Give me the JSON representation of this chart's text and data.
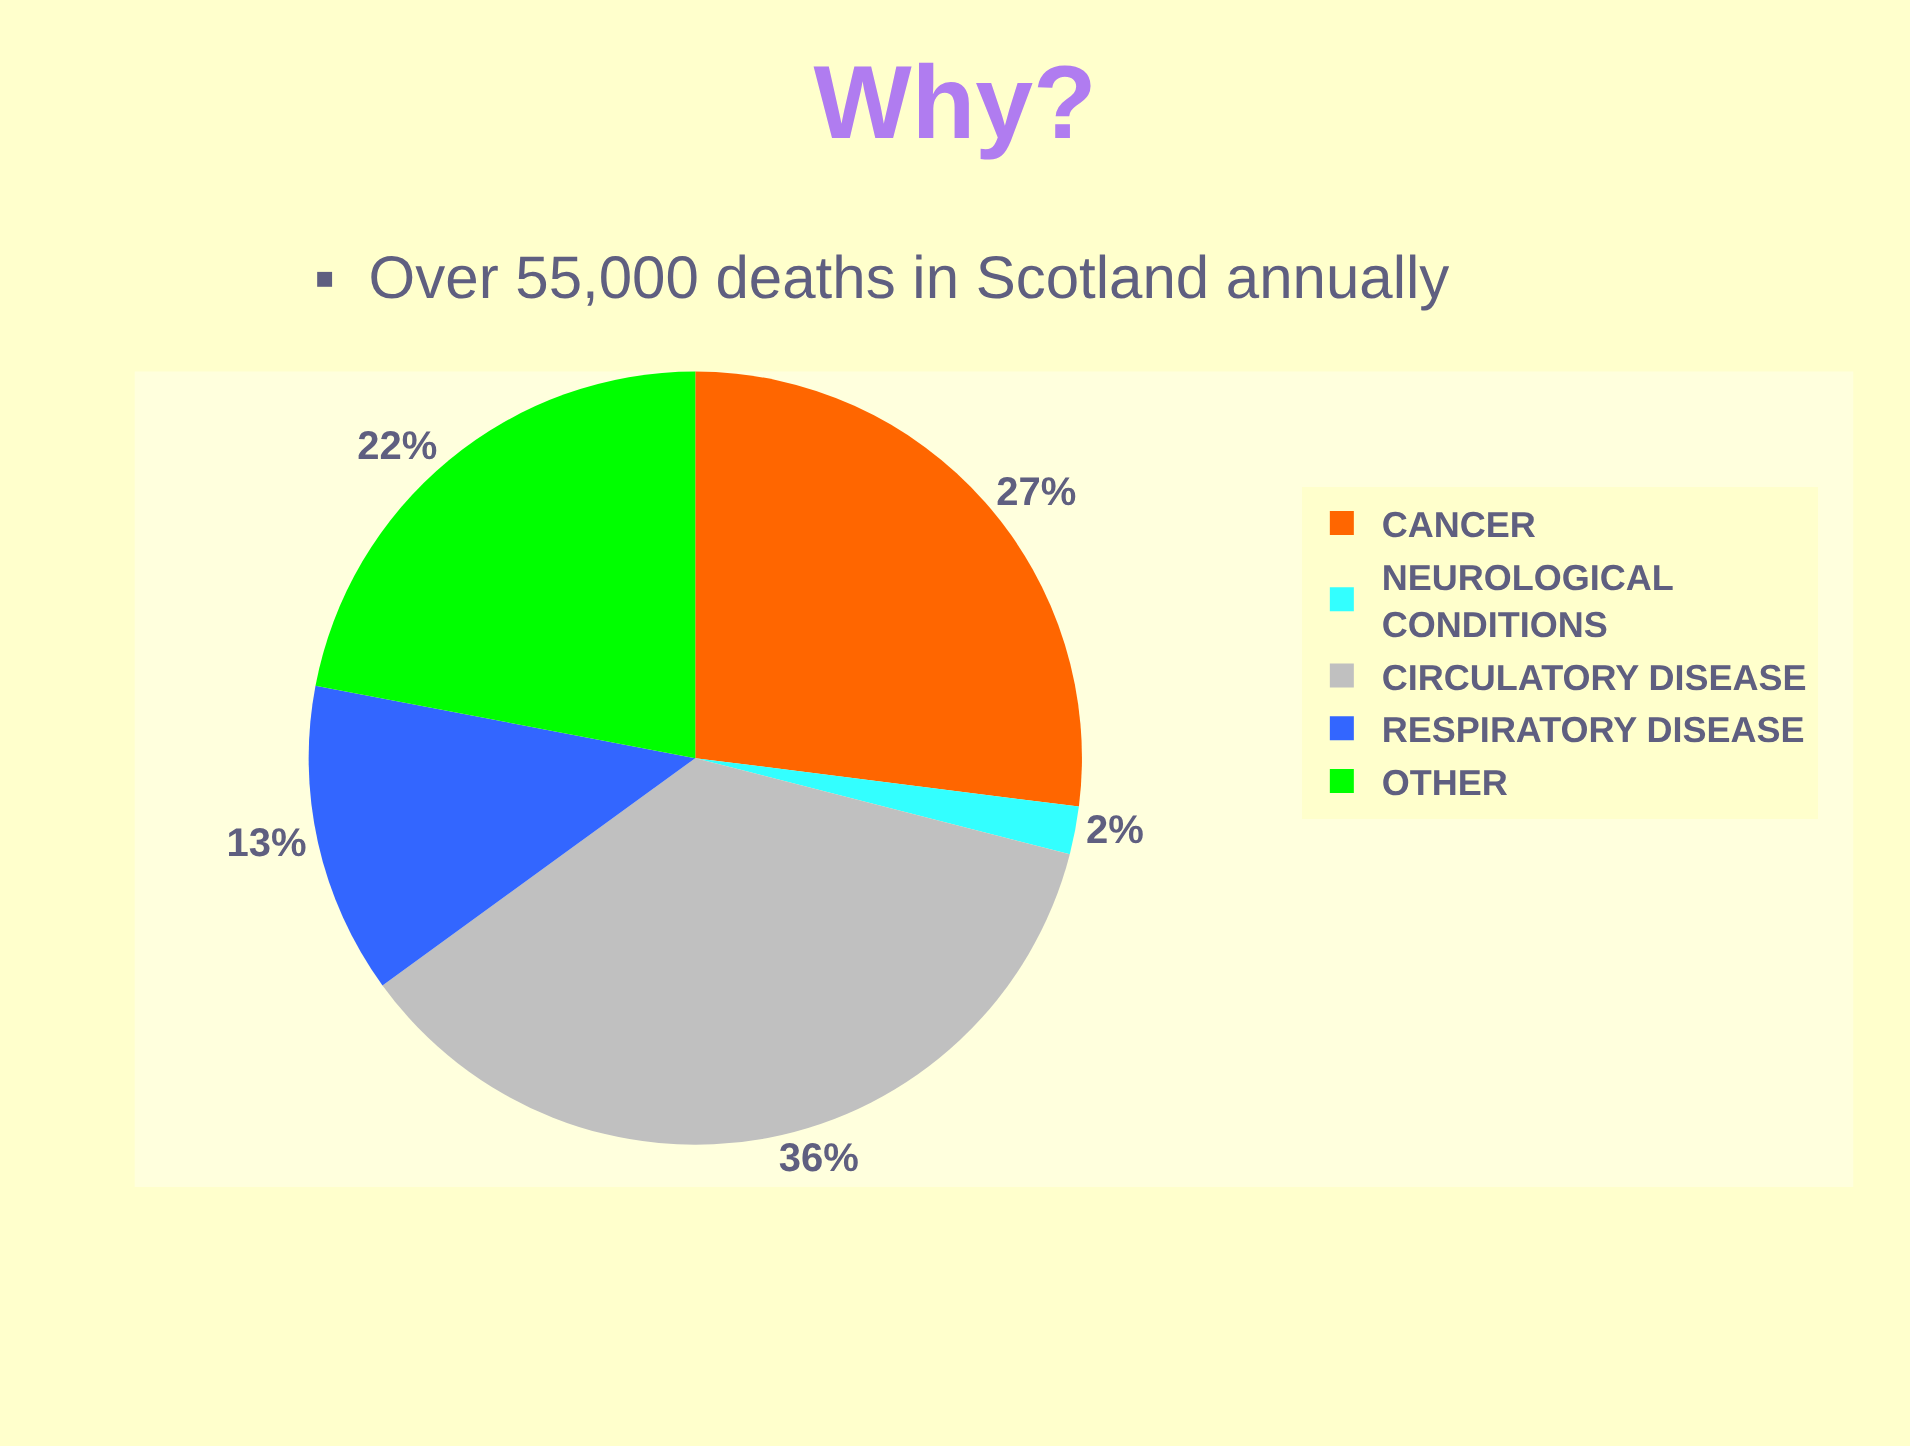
{
  "chart_data": {
    "type": "pie",
    "title": "Why?",
    "subtitle": "▪  Over 55,000 deaths in Scotland annually",
    "categories": [
      "CANCER",
      "NEUROLOGICAL CONDITIONS",
      "CIRCULATORY DISEASE",
      "RESPIRATORY DISEASE",
      "OTHER"
    ],
    "values": [
      27,
      2,
      36,
      13,
      22
    ],
    "colors": [
      "#ff6600",
      "#33ffff",
      "#c0c0c0",
      "#3366ff",
      "#00ff00"
    ],
    "value_labels": [
      "27%",
      "2%",
      "36%",
      "13%",
      "22%"
    ],
    "legend": "right"
  }
}
